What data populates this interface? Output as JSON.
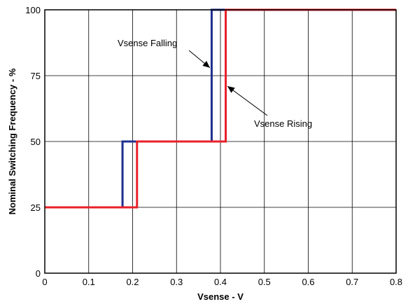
{
  "chart_data": {
    "type": "line",
    "title": "",
    "xlabel": "Vsense - V",
    "ylabel": "Nominal Switching Frequency - %",
    "xlim": [
      0,
      0.8
    ],
    "ylim": [
      0,
      100
    ],
    "xticks": [
      0,
      0.1,
      0.2,
      0.3,
      0.4,
      0.5,
      0.6,
      0.7,
      0.8
    ],
    "yticks": [
      0,
      25,
      50,
      75,
      100
    ],
    "xtick_labels": [
      "0",
      "0.1",
      "0.2",
      "0.3",
      "0.4",
      "0.5",
      "0.6",
      "0.7",
      "0.8"
    ],
    "ytick_labels": [
      "0",
      "25",
      "50",
      "75",
      "100"
    ],
    "grid": true,
    "series": [
      {
        "color": "#1f2f8f",
        "x": [
          0,
          0.177,
          0.177,
          0.38,
          0.38,
          0.8
        ],
        "y": [
          25,
          25,
          50,
          50,
          100,
          100
        ]
      },
      {
        "color": "#e8202a",
        "x": [
          0,
          0.21,
          0.21,
          0.412,
          0.412,
          0.8
        ],
        "y": [
          25,
          25,
          50,
          50,
          100,
          100
        ]
      }
    ],
    "annotations": [
      {
        "text": "Vsense Falling",
        "arrow_to": [
          0.376,
          78
        ]
      },
      {
        "text": "Vsense Rising",
        "arrow_to": [
          0.416,
          71
        ]
      }
    ]
  }
}
